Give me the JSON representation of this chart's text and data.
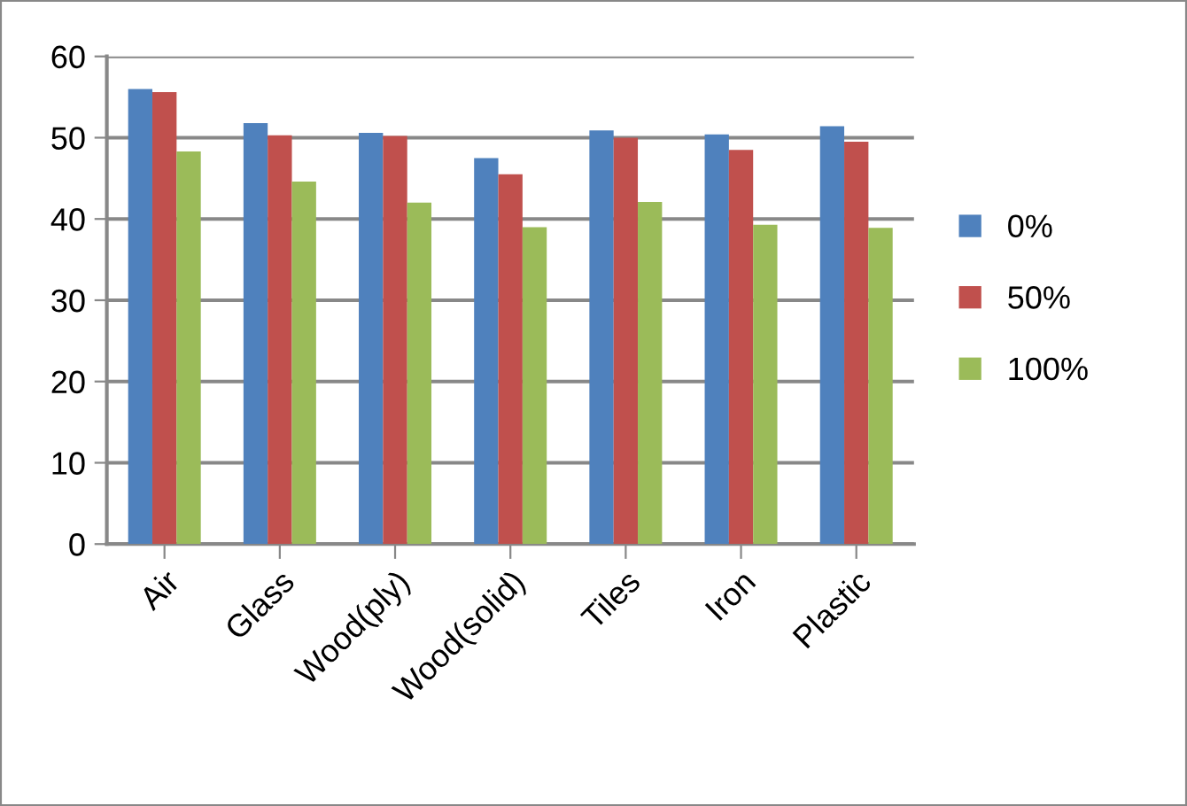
{
  "chart_data": {
    "type": "bar",
    "categories": [
      "Air",
      "Glass",
      "Wood(ply)",
      "Wood(solid)",
      "Tiles",
      "Iron",
      "Plastic"
    ],
    "series": [
      {
        "name": "0%",
        "color": "#4f81bd",
        "values": [
          56.0,
          51.8,
          50.6,
          47.5,
          50.9,
          50.4,
          51.4
        ]
      },
      {
        "name": "50%",
        "color": "#c0504d",
        "values": [
          55.6,
          50.3,
          50.2,
          45.5,
          50.0,
          48.5,
          49.5
        ]
      },
      {
        "name": "100%",
        "color": "#9bbb59",
        "values": [
          48.3,
          44.6,
          42.0,
          39.0,
          42.1,
          39.3,
          38.9
        ]
      }
    ],
    "ylim": [
      0,
      60
    ],
    "yticks": [
      0,
      10,
      20,
      30,
      40,
      50,
      60
    ],
    "grid": "y",
    "legend": "right"
  }
}
